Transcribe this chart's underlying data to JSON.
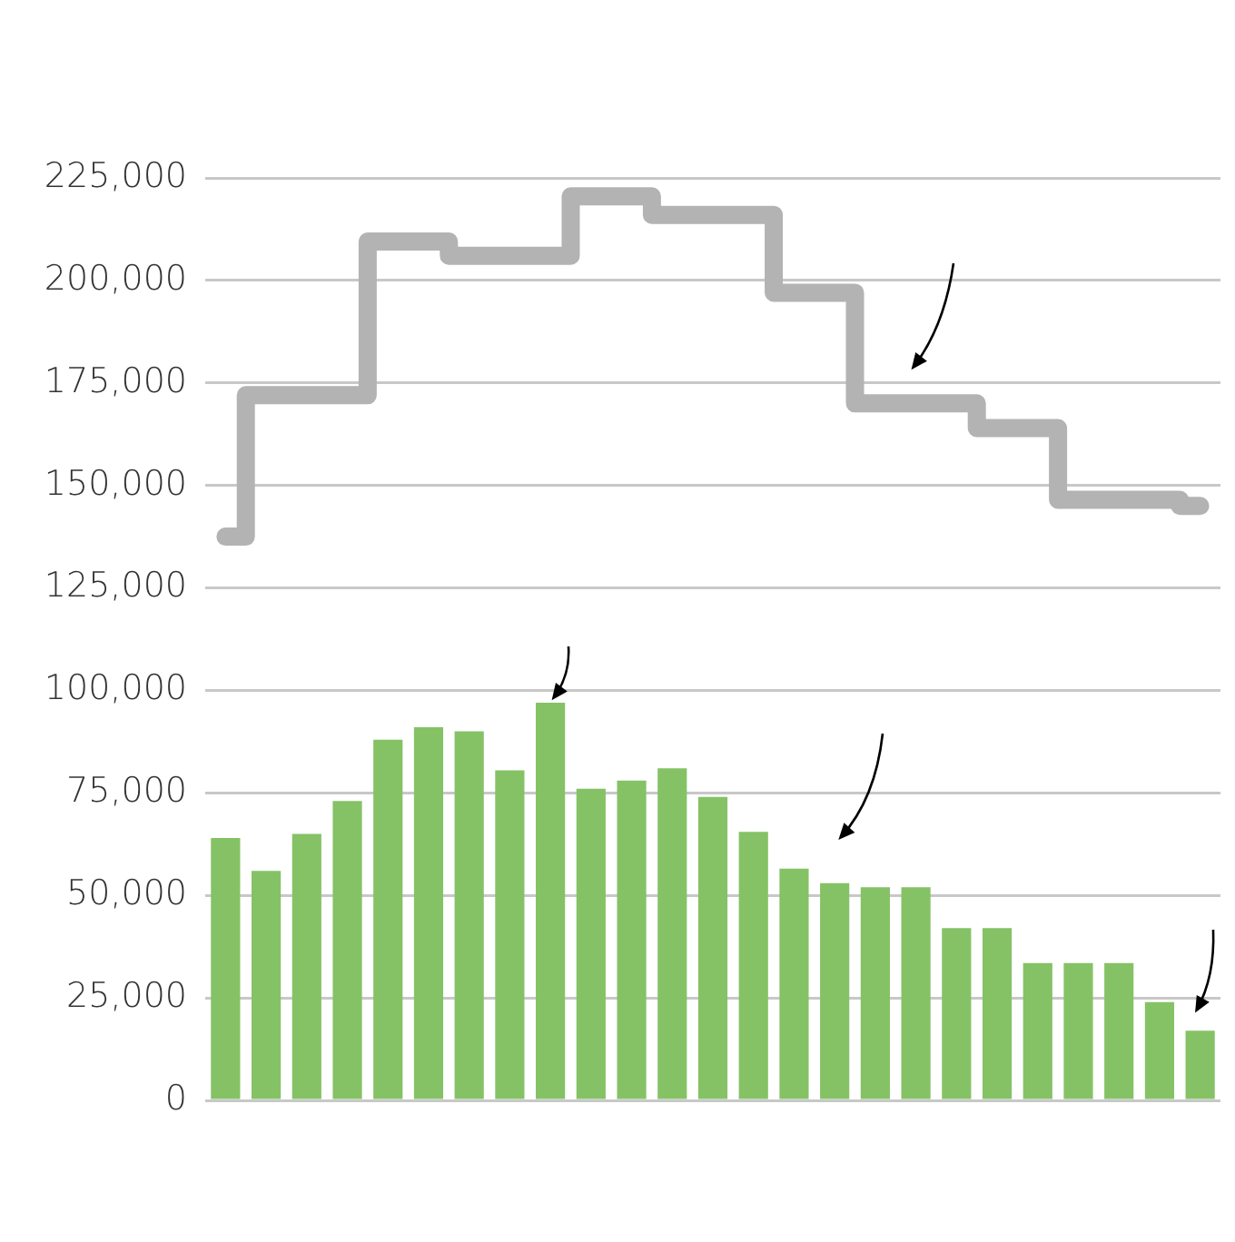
{
  "chart_data": {
    "type": "bar",
    "categories": [
      null,
      null,
      null,
      null,
      null,
      null,
      null,
      null,
      null,
      null,
      null,
      null,
      null,
      null,
      null,
      null,
      null,
      null,
      null,
      null,
      null,
      null,
      null,
      null,
      null
    ],
    "series": [
      {
        "color": "#85c266",
        "values": [
          64000,
          56000,
          65000,
          73000,
          88000,
          91000,
          90000,
          80500,
          97000,
          76000,
          78000,
          81000,
          74000,
          65500,
          56500,
          53000,
          52000,
          52000,
          42000,
          42000,
          33500,
          33500,
          33500,
          24000,
          17000
        ]
      },
      {
        "type": "step",
        "color": "#b3b3b3",
        "values": [
          137500,
          172000,
          172000,
          172000,
          209500,
          209500,
          206000,
          206000,
          206000,
          220500,
          220500,
          216000,
          216000,
          216000,
          197000,
          197000,
          170000,
          170000,
          170000,
          164000,
          164000,
          146500,
          146500,
          146500,
          145000
        ]
      }
    ],
    "ylim": [
      0,
      225000
    ],
    "yticks": [
      {
        "value": 0,
        "label": "0"
      },
      {
        "value": 25000,
        "label": "25,000"
      },
      {
        "value": 50000,
        "label": "50,000"
      },
      {
        "value": 75000,
        "label": "75,000"
      },
      {
        "value": 100000,
        "label": "100,000"
      },
      {
        "value": 125000,
        "label": "125,000"
      },
      {
        "value": 150000,
        "label": "150,000"
      },
      {
        "value": 175000,
        "label": "175,000"
      },
      {
        "value": 200000,
        "label": "200,000"
      },
      {
        "value": 225000,
        "label": "225,000"
      }
    ],
    "grid": "y",
    "tick_labels": "y"
  }
}
